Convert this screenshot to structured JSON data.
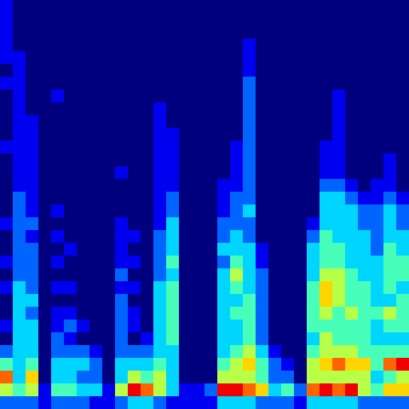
{
  "chart_data": {
    "type": "heatmap",
    "tick_labels": false,
    "zlim": [
      0,
      9
    ],
    "cells": [
      [
        1,
        0,
        0,
        0,
        0,
        0,
        0,
        0,
        0,
        0,
        0,
        0,
        0,
        0,
        0,
        0,
        0,
        0,
        0,
        0,
        0,
        0,
        0,
        0,
        0,
        0,
        0,
        0,
        0,
        0,
        0,
        0
      ],
      [
        1,
        0,
        0,
        0,
        0,
        0,
        0,
        0,
        0,
        0,
        0,
        0,
        0,
        0,
        0,
        0,
        0,
        0,
        0,
        0,
        0,
        0,
        0,
        0,
        0,
        0,
        0,
        0,
        0,
        0,
        0,
        0
      ],
      [
        1,
        0,
        0,
        0,
        0,
        0,
        0,
        0,
        0,
        0,
        0,
        0,
        0,
        0,
        0,
        0,
        0,
        0,
        0,
        0,
        0,
        0,
        0,
        0,
        0,
        0,
        0,
        0,
        0,
        0,
        0,
        0
      ],
      [
        1,
        0,
        0,
        0,
        0,
        0,
        0,
        0,
        0,
        0,
        0,
        0,
        0,
        0,
        0,
        0,
        0,
        0,
        0,
        1,
        0,
        0,
        0,
        0,
        0,
        0,
        0,
        0,
        0,
        0,
        0,
        0
      ],
      [
        1,
        1,
        0,
        0,
        0,
        0,
        0,
        0,
        0,
        0,
        0,
        0,
        0,
        0,
        0,
        0,
        0,
        0,
        0,
        1,
        0,
        0,
        0,
        0,
        0,
        0,
        0,
        0,
        0,
        0,
        0,
        0
      ],
      [
        0,
        1,
        0,
        0,
        0,
        0,
        0,
        0,
        0,
        0,
        0,
        0,
        0,
        0,
        0,
        0,
        0,
        0,
        0,
        1,
        0,
        0,
        0,
        0,
        0,
        0,
        0,
        0,
        0,
        0,
        0,
        0
      ],
      [
        1,
        1,
        0,
        0,
        0,
        0,
        0,
        0,
        0,
        0,
        0,
        0,
        0,
        0,
        0,
        0,
        0,
        0,
        0,
        2,
        0,
        0,
        0,
        0,
        0,
        0,
        0,
        0,
        0,
        0,
        0,
        0
      ],
      [
        0,
        1,
        0,
        0,
        1,
        0,
        0,
        0,
        0,
        0,
        0,
        0,
        0,
        0,
        0,
        0,
        0,
        0,
        0,
        2,
        0,
        0,
        0,
        0,
        0,
        0,
        1,
        0,
        0,
        0,
        0,
        0
      ],
      [
        0,
        1,
        0,
        0,
        0,
        0,
        0,
        0,
        0,
        0,
        0,
        0,
        1,
        0,
        0,
        0,
        0,
        0,
        0,
        2,
        0,
        0,
        0,
        0,
        0,
        0,
        1,
        0,
        0,
        0,
        0,
        0
      ],
      [
        0,
        1,
        1,
        0,
        0,
        0,
        0,
        0,
        0,
        0,
        0,
        0,
        1,
        0,
        0,
        0,
        0,
        0,
        0,
        2,
        0,
        0,
        0,
        0,
        0,
        0,
        1,
        0,
        0,
        0,
        0,
        0
      ],
      [
        0,
        1,
        1,
        0,
        0,
        0,
        0,
        0,
        0,
        0,
        0,
        0,
        1,
        1,
        0,
        0,
        0,
        0,
        0,
        2,
        0,
        0,
        0,
        0,
        0,
        0,
        1,
        0,
        0,
        0,
        0,
        0
      ],
      [
        1,
        1,
        1,
        0,
        0,
        0,
        0,
        0,
        0,
        0,
        0,
        0,
        1,
        1,
        0,
        0,
        0,
        0,
        1,
        2,
        0,
        0,
        0,
        0,
        0,
        1,
        1,
        0,
        0,
        0,
        0,
        0
      ],
      [
        0,
        1,
        1,
        0,
        0,
        0,
        0,
        0,
        0,
        0,
        0,
        0,
        1,
        1,
        0,
        0,
        0,
        0,
        1,
        2,
        0,
        0,
        0,
        0,
        0,
        1,
        1,
        0,
        0,
        0,
        1,
        0
      ],
      [
        0,
        1,
        1,
        0,
        0,
        0,
        0,
        0,
        0,
        1,
        0,
        0,
        1,
        1,
        0,
        0,
        0,
        0,
        1,
        2,
        0,
        0,
        0,
        0,
        0,
        1,
        1,
        0,
        0,
        0,
        1,
        0
      ],
      [
        0,
        1,
        1,
        0,
        0,
        0,
        0,
        0,
        0,
        0,
        0,
        0,
        1,
        1,
        0,
        0,
        0,
        1,
        1,
        2,
        0,
        0,
        0,
        0,
        0,
        2,
        2,
        1,
        0,
        1,
        1,
        0
      ],
      [
        0,
        2,
        1,
        0,
        0,
        0,
        0,
        0,
        0,
        0,
        0,
        0,
        1,
        2,
        0,
        0,
        0,
        1,
        2,
        2,
        0,
        0,
        0,
        0,
        0,
        3,
        3,
        2,
        1,
        1,
        2,
        1
      ],
      [
        0,
        2,
        1,
        0,
        1,
        0,
        0,
        0,
        0,
        0,
        0,
        0,
        1,
        2,
        0,
        0,
        0,
        1,
        2,
        3,
        0,
        0,
        0,
        0,
        0,
        3,
        3,
        3,
        2,
        2,
        3,
        2
      ],
      [
        1,
        2,
        2,
        0,
        0,
        0,
        0,
        0,
        0,
        1,
        0,
        0,
        1,
        3,
        0,
        0,
        0,
        2,
        2,
        2,
        0,
        0,
        0,
        0,
        1,
        3,
        3,
        3,
        2,
        2,
        3,
        2
      ],
      [
        0,
        2,
        1,
        0,
        1,
        0,
        0,
        0,
        0,
        1,
        1,
        0,
        2,
        3,
        0,
        0,
        0,
        2,
        3,
        2,
        0,
        0,
        0,
        0,
        2,
        4,
        3,
        3,
        3,
        2,
        3,
        3
      ],
      [
        0,
        2,
        2,
        0,
        0,
        1,
        0,
        0,
        0,
        1,
        0,
        0,
        2,
        3,
        0,
        0,
        0,
        3,
        3,
        3,
        1,
        0,
        0,
        0,
        3,
        4,
        4,
        3,
        3,
        2,
        4,
        3
      ],
      [
        1,
        2,
        2,
        0,
        1,
        0,
        0,
        0,
        0,
        1,
        1,
        0,
        2,
        4,
        0,
        0,
        0,
        2,
        4,
        3,
        1,
        0,
        0,
        0,
        3,
        4,
        4,
        3,
        3,
        3,
        4,
        4
      ],
      [
        0,
        2,
        2,
        0,
        0,
        0,
        0,
        0,
        0,
        2,
        0,
        0,
        2,
        3,
        0,
        0,
        0,
        3,
        5,
        3,
        2,
        0,
        0,
        0,
        3,
        5,
        5,
        4,
        3,
        3,
        4,
        4
      ],
      [
        1,
        3,
        2,
        0,
        1,
        1,
        0,
        0,
        0,
        1,
        1,
        0,
        3,
        4,
        0,
        0,
        0,
        3,
        4,
        3,
        2,
        0,
        0,
        0,
        4,
        6,
        5,
        4,
        4,
        3,
        4,
        3
      ],
      [
        0,
        3,
        3,
        0,
        0,
        0,
        0,
        0,
        0,
        2,
        0,
        0,
        3,
        4,
        0,
        0,
        0,
        3,
        3,
        4,
        2,
        0,
        0,
        0,
        4,
        6,
        5,
        4,
        4,
        3,
        3,
        4
      ],
      [
        0,
        3,
        2,
        0,
        1,
        1,
        0,
        0,
        0,
        2,
        1,
        0,
        3,
        4,
        0,
        0,
        0,
        3,
        4,
        4,
        2,
        0,
        0,
        0,
        4,
        5,
        4,
        5,
        4,
        4,
        5,
        4
      ],
      [
        1,
        3,
        3,
        0,
        1,
        2,
        1,
        0,
        0,
        2,
        1,
        0,
        3,
        4,
        0,
        0,
        0,
        3,
        3,
        4,
        2,
        0,
        0,
        0,
        4,
        4,
        4,
        4,
        4,
        3,
        4,
        4
      ],
      [
        0,
        3,
        3,
        0,
        2,
        1,
        0,
        0,
        0,
        2,
        0,
        1,
        3,
        4,
        0,
        0,
        0,
        3,
        3,
        4,
        2,
        0,
        0,
        0,
        3,
        5,
        4,
        4,
        4,
        3,
        3,
        3
      ],
      [
        2,
        3,
        3,
        0,
        2,
        2,
        2,
        1,
        0,
        2,
        2,
        2,
        3,
        3,
        0,
        0,
        0,
        3,
        4,
        5,
        3,
        1,
        0,
        0,
        4,
        5,
        5,
        5,
        4,
        4,
        4,
        4
      ],
      [
        4,
        3,
        4,
        0,
        3,
        3,
        3,
        2,
        0,
        3,
        3,
        3,
        4,
        3,
        0,
        0,
        0,
        4,
        5,
        6,
        4,
        2,
        1,
        0,
        5,
        6,
        7,
        6,
        6,
        4,
        7,
        8
      ],
      [
        7,
        3,
        6,
        0,
        3,
        3,
        2,
        2,
        0,
        3,
        5,
        4,
        5,
        3,
        0,
        0,
        0,
        5,
        5,
        5,
        4,
        2,
        2,
        0,
        5,
        5,
        5,
        5,
        5,
        3,
        4,
        5
      ],
      [
        5,
        4,
        5,
        1,
        4,
        4,
        3,
        3,
        1,
        5,
        8,
        7,
        5,
        3,
        1,
        1,
        2,
        8,
        8,
        7,
        6,
        3,
        4,
        2,
        7,
        8,
        7,
        8,
        5,
        4,
        6,
        6
      ],
      [
        2,
        2,
        2,
        1,
        2,
        2,
        2,
        1,
        1,
        2,
        3,
        3,
        2,
        1,
        1,
        1,
        1,
        3,
        3,
        3,
        2,
        2,
        2,
        1,
        3,
        3,
        3,
        3,
        2,
        2,
        2,
        2
      ]
    ]
  }
}
